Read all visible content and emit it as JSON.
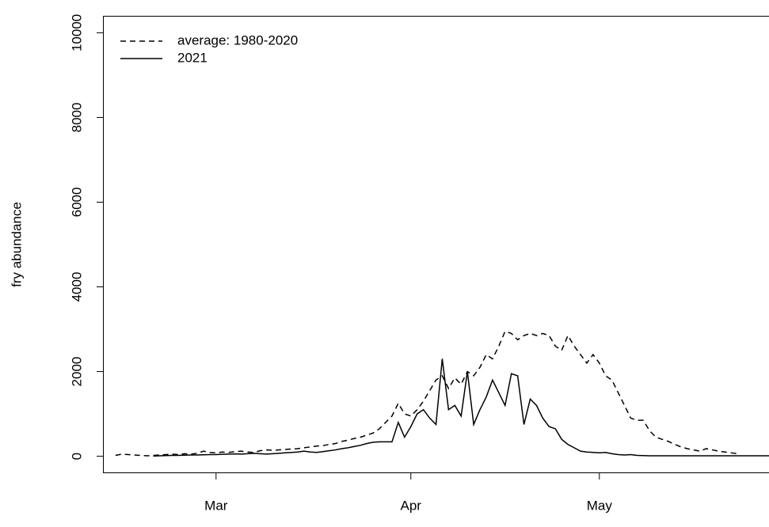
{
  "chart_data": {
    "type": "line",
    "y_label": "fry abundance",
    "xlim": [
      42,
      148
    ],
    "xticks": [
      {
        "value": 60,
        "label": "Mar"
      },
      {
        "value": 91,
        "label": "Apr"
      },
      {
        "value": 121,
        "label": "May"
      }
    ],
    "ylim": [
      -400,
      10400
    ],
    "yticks": [
      0,
      2000,
      4000,
      6000,
      8000,
      10000
    ],
    "legend": "top-left",
    "series": [
      {
        "name": "average: 1980-2020",
        "color": "#000000",
        "dash": "dashed",
        "x": [
          44,
          45,
          46,
          47,
          48,
          49,
          50,
          51,
          52,
          53,
          54,
          55,
          56,
          57,
          58,
          59,
          60,
          61,
          62,
          63,
          64,
          65,
          66,
          67,
          68,
          69,
          70,
          71,
          72,
          73,
          74,
          75,
          76,
          77,
          78,
          79,
          80,
          81,
          82,
          83,
          84,
          85,
          86,
          87,
          88,
          89,
          90,
          91,
          92,
          93,
          94,
          95,
          96,
          97,
          98,
          99,
          100,
          101,
          102,
          103,
          104,
          105,
          106,
          107,
          108,
          109,
          110,
          111,
          112,
          113,
          114,
          115,
          116,
          117,
          118,
          119,
          120,
          121,
          122,
          123,
          124,
          125,
          126,
          127,
          128,
          129,
          130,
          131,
          132,
          133,
          134,
          135,
          136,
          137,
          138,
          139,
          140,
          141,
          142,
          143
        ],
        "values": [
          20,
          50,
          40,
          30,
          20,
          10,
          20,
          30,
          40,
          50,
          40,
          60,
          50,
          70,
          120,
          90,
          80,
          100,
          90,
          110,
          120,
          100,
          90,
          130,
          150,
          140,
          150,
          160,
          170,
          180,
          200,
          220,
          240,
          250,
          280,
          300,
          350,
          380,
          420,
          450,
          500,
          550,
          650,
          800,
          950,
          1250,
          1000,
          950,
          1100,
          1300,
          1550,
          1800,
          1900,
          1600,
          1850,
          1700,
          2000,
          1900,
          2100,
          2400,
          2300,
          2600,
          2950,
          2900,
          2750,
          2850,
          2900,
          2850,
          2900,
          2850,
          2600,
          2500,
          2850,
          2600,
          2400,
          2200,
          2400,
          2200,
          1900,
          1800,
          1500,
          1200,
          900,
          850,
          850,
          600,
          450,
          400,
          350,
          280,
          220,
          180,
          150,
          120,
          180,
          150,
          120,
          100,
          80,
          60
        ]
      },
      {
        "name": "2021",
        "color": "#000000",
        "dash": "solid",
        "x": [
          50,
          51,
          52,
          53,
          54,
          55,
          56,
          57,
          58,
          59,
          60,
          61,
          62,
          63,
          64,
          65,
          66,
          67,
          68,
          69,
          70,
          71,
          72,
          73,
          74,
          75,
          76,
          77,
          78,
          79,
          80,
          81,
          82,
          83,
          84,
          85,
          86,
          87,
          88,
          89,
          90,
          91,
          92,
          93,
          94,
          95,
          96,
          97,
          98,
          99,
          100,
          101,
          102,
          103,
          104,
          105,
          106,
          107,
          108,
          109,
          110,
          111,
          112,
          113,
          114,
          115,
          116,
          117,
          118,
          119,
          120,
          121,
          122,
          123,
          124,
          125,
          126,
          127,
          128,
          129,
          130,
          131,
          132,
          133,
          134,
          135,
          136,
          137,
          138,
          139,
          140,
          141,
          142,
          143,
          144,
          145,
          146,
          147,
          148
        ],
        "values": [
          5,
          10,
          15,
          20,
          20,
          25,
          30,
          30,
          35,
          40,
          40,
          45,
          50,
          55,
          50,
          60,
          70,
          60,
          50,
          60,
          70,
          80,
          90,
          100,
          120,
          100,
          90,
          110,
          130,
          150,
          180,
          200,
          230,
          260,
          300,
          330,
          340,
          340,
          340,
          800,
          450,
          700,
          1000,
          1100,
          900,
          750,
          2300,
          1100,
          1200,
          950,
          2000,
          750,
          1100,
          1400,
          1800,
          1500,
          1200,
          1950,
          1900,
          750,
          1350,
          1200,
          900,
          700,
          650,
          400,
          280,
          200,
          120,
          100,
          90,
          80,
          90,
          60,
          40,
          30,
          40,
          20,
          15,
          10,
          10,
          10,
          10,
          10,
          10,
          10,
          10,
          10,
          10,
          10,
          10,
          10,
          10,
          10,
          10,
          10,
          10,
          10,
          10
        ]
      }
    ]
  }
}
